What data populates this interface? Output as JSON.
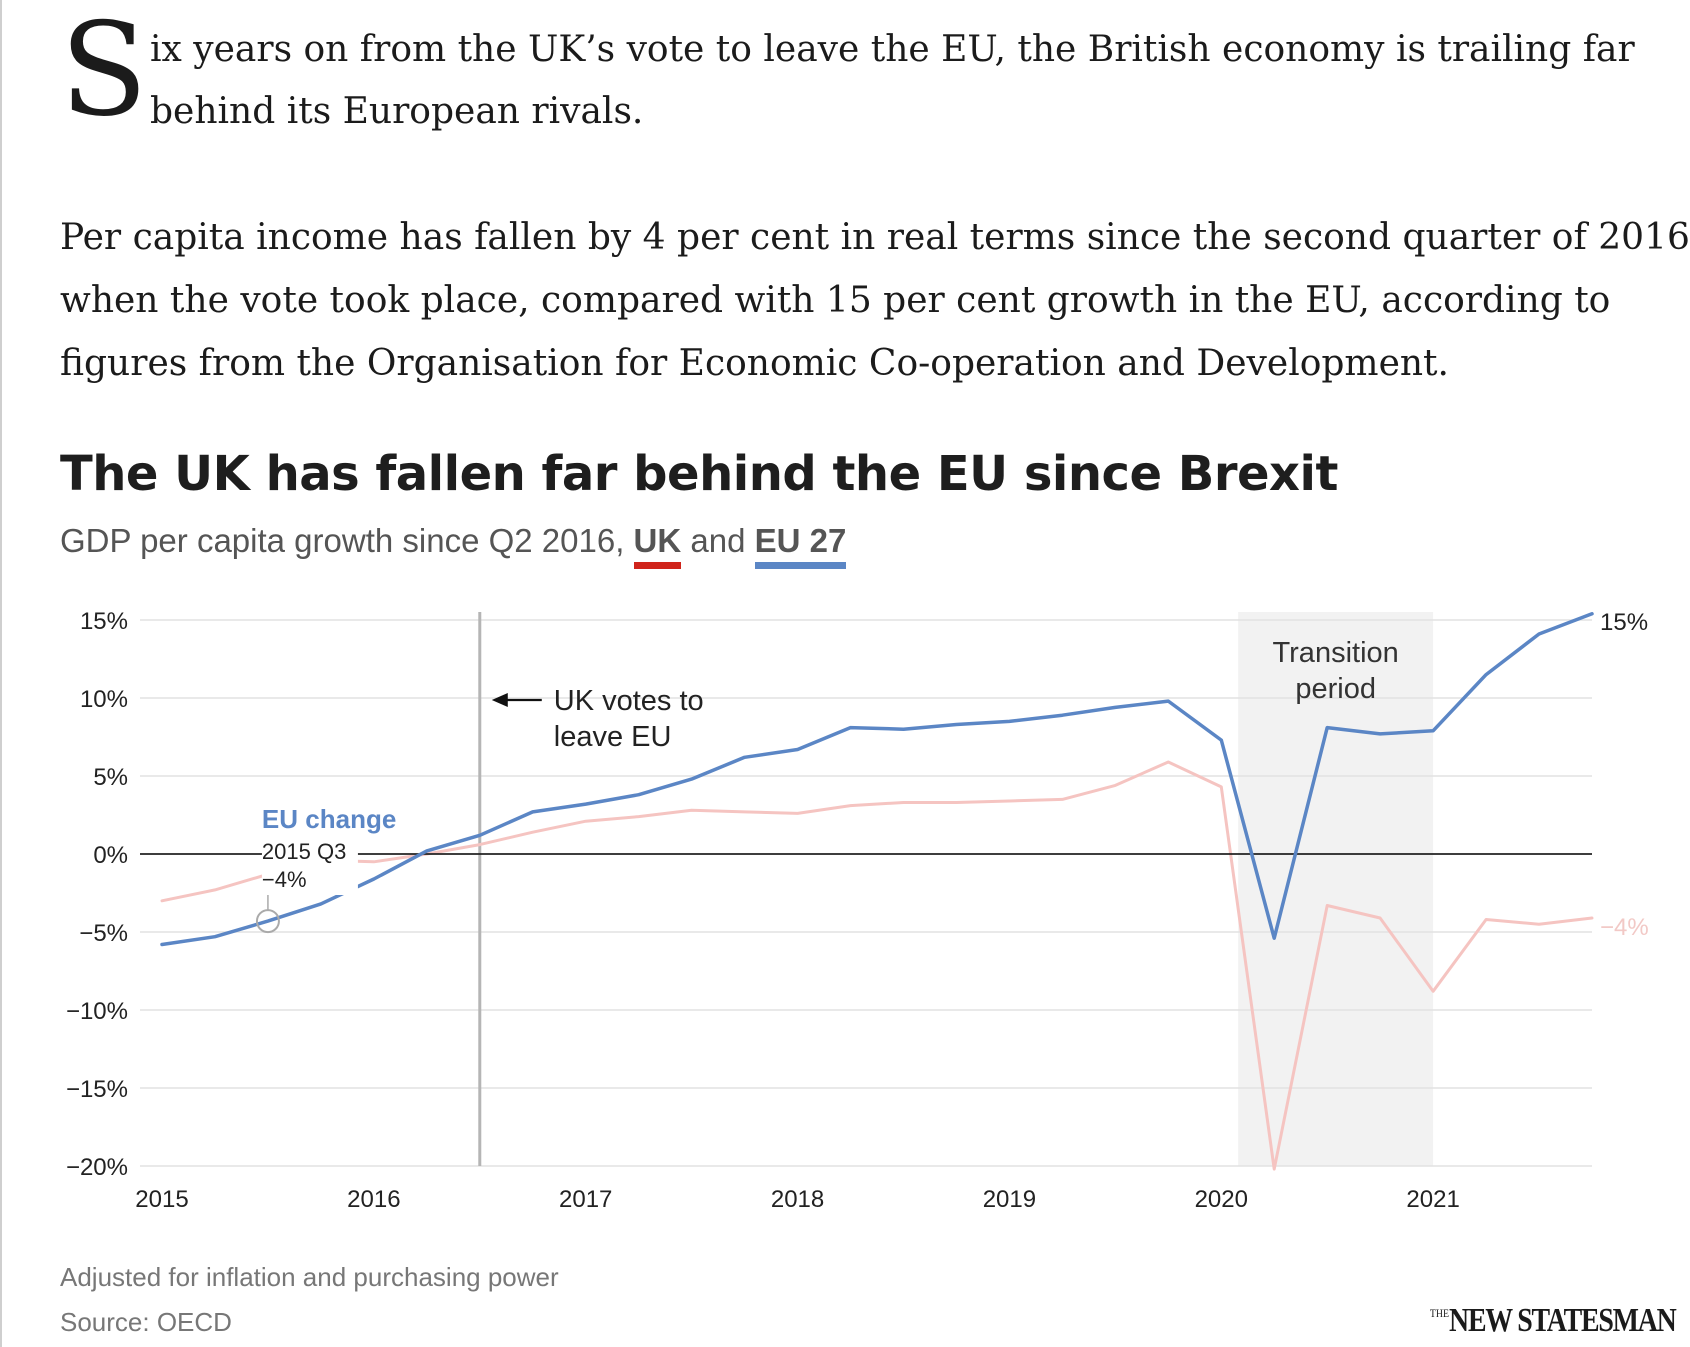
{
  "article": {
    "dropcap": "S",
    "lead_line1": "ix years on from the UK’s vote to leave the EU, the British economy is trailing far",
    "lead_line2": "behind its European rivals.",
    "para_line1": "Per capita income has fallen by 4 per cent in real terms since the second quarter of 2016,",
    "para_line2": "when the vote took place, compared with 15 per cent growth in the EU, according to",
    "para_line3": "figures from the Organisation for Economic Co-operation and Development."
  },
  "chart_data": {
    "type": "line",
    "title": "The UK has fallen far behind the EU since Brexit",
    "subtitle_prefix": "GDP per capita growth since Q2 2016,",
    "subtitle_uk": "UK",
    "subtitle_and": "and",
    "subtitle_eu": "EU 27",
    "y_ticks": [
      15,
      10,
      5,
      0,
      -5,
      -10,
      -15,
      -20
    ],
    "y_tick_labels": [
      "15%",
      "10%",
      "5%",
      "0%",
      "−5%",
      "−10%",
      "−15%",
      "−20%"
    ],
    "ylim": [
      -20,
      15
    ],
    "x_ticks": [
      2015,
      2016,
      2017,
      2018,
      2019,
      2020,
      2021
    ],
    "x_tick_labels": [
      "2015",
      "2016",
      "2017",
      "2018",
      "2019",
      "2020",
      "2021"
    ],
    "xlim": [
      2015,
      2021.75
    ],
    "grid": true,
    "series": [
      {
        "name": "EU 27",
        "color": "#5b86c5",
        "x": [
          2015.0,
          2015.25,
          2015.5,
          2015.75,
          2016.0,
          2016.25,
          2016.5,
          2016.75,
          2017.0,
          2017.25,
          2017.5,
          2017.75,
          2018.0,
          2018.25,
          2018.5,
          2018.75,
          2019.0,
          2019.25,
          2019.5,
          2019.75,
          2020.0,
          2020.25,
          2020.5,
          2020.75,
          2021.0,
          2021.25,
          2021.5,
          2021.75
        ],
        "values": [
          -5.8,
          -5.3,
          -4.3,
          -3.2,
          -1.6,
          0.2,
          1.2,
          2.7,
          3.2,
          3.8,
          4.8,
          6.2,
          6.7,
          8.1,
          8.0,
          8.3,
          8.5,
          8.9,
          9.4,
          9.8,
          7.3,
          -5.4,
          8.1,
          7.7,
          7.9,
          11.5,
          14.1,
          15.4
        ]
      },
      {
        "name": "UK",
        "color": "#f5c4c1",
        "x": [
          2015.0,
          2015.25,
          2015.5,
          2015.75,
          2016.0,
          2016.25,
          2016.5,
          2016.75,
          2017.0,
          2017.25,
          2017.5,
          2017.75,
          2018.0,
          2018.25,
          2018.5,
          2018.75,
          2019.0,
          2019.25,
          2019.5,
          2019.75,
          2020.0,
          2020.25,
          2020.5,
          2020.75,
          2021.0,
          2021.25,
          2021.5,
          2021.75
        ],
        "values": [
          -3.0,
          -2.3,
          -1.3,
          -0.4,
          -0.5,
          0.0,
          0.6,
          1.4,
          2.1,
          2.4,
          2.8,
          2.7,
          2.6,
          3.1,
          3.3,
          3.3,
          3.4,
          3.5,
          4.4,
          5.9,
          4.3,
          -20.2,
          -3.3,
          -4.1,
          -8.8,
          -4.2,
          -4.5,
          -4.1
        ]
      }
    ],
    "end_label_eu": "15%",
    "end_label_uk": "−4%",
    "vote_line_x": 2016.5,
    "vote_label_line1": "UK votes to",
    "vote_label_line2": "leave EU",
    "transition_period": [
      2020.08,
      2021.0
    ],
    "transition_label_line1": "Transition",
    "transition_label_line2": "period",
    "annotation": {
      "title": "EU change",
      "period": "2015 Q3",
      "value": "−4%",
      "x": 2015.5,
      "y": -4.3
    }
  },
  "notes": {
    "adjusted": "Adjusted for inflation and purchasing power",
    "source": "Source: OECD"
  },
  "brand": {
    "small": "THE",
    "name": "NEW STATESMAN"
  }
}
